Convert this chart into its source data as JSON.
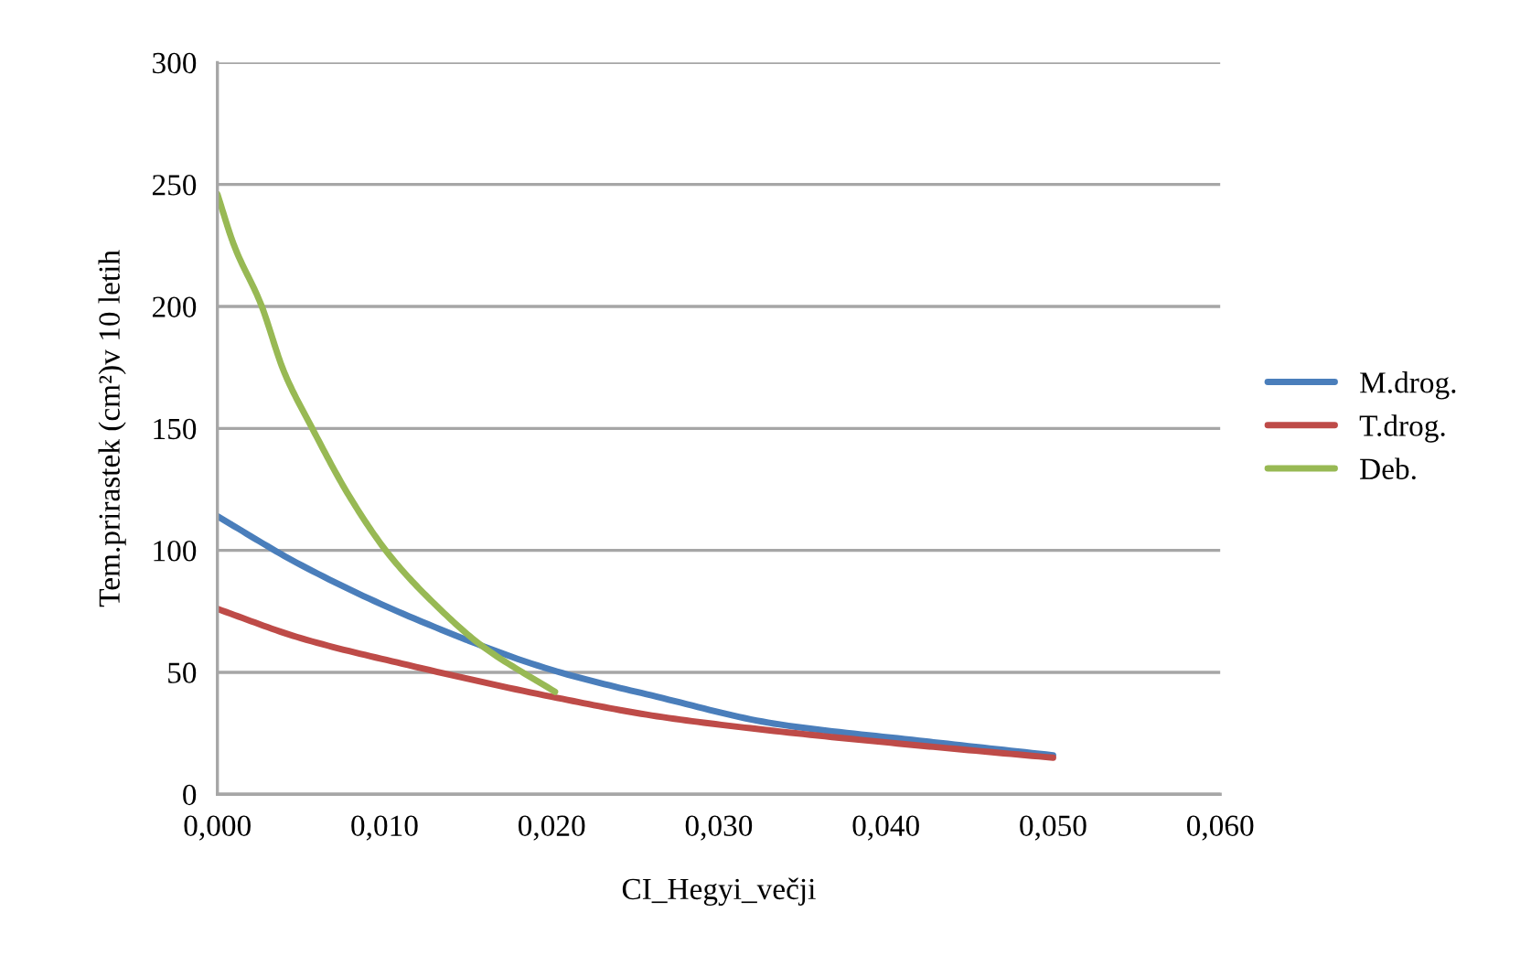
{
  "chart_data": {
    "type": "line",
    "xlabel": "CI_Hegyi_večji",
    "ylabel": "Tem.prirastek (cm²)v 10 letih",
    "xlim": [
      0,
      0.06
    ],
    "ylim": [
      0,
      300
    ],
    "xticks": [
      {
        "value": 0,
        "label": "0,000"
      },
      {
        "value": 0.01,
        "label": "0,010"
      },
      {
        "value": 0.02,
        "label": "0,020"
      },
      {
        "value": 0.03,
        "label": "0,030"
      },
      {
        "value": 0.04,
        "label": "0,040"
      },
      {
        "value": 0.05,
        "label": "0,050"
      },
      {
        "value": 0.06,
        "label": "0,060"
      }
    ],
    "yticks": [
      0,
      50,
      100,
      150,
      200,
      250,
      300
    ],
    "grid": "y",
    "legend": "right",
    "marker": "none",
    "line_style": "solid",
    "series": [
      {
        "name": "M.drog.",
        "color": "#4a7ebb",
        "x": [
          0,
          0.005,
          0.0118,
          0.02,
          0.0263,
          0.0333,
          0.042,
          0.05
        ],
        "values": [
          114,
          94,
          72,
          51,
          40,
          29,
          22,
          16
        ]
      },
      {
        "name": "T.drog.",
        "color": "#be4b48",
        "x": [
          0,
          0.005,
          0.0114,
          0.02,
          0.0263,
          0.0333,
          0.042,
          0.05
        ],
        "values": [
          76,
          64,
          53,
          40,
          32,
          26,
          20,
          15
        ]
      },
      {
        "name": "Deb.",
        "color": "#98b954",
        "x": [
          0,
          0.001,
          0.0026,
          0.004,
          0.0056,
          0.008,
          0.0103,
          0.013,
          0.0158,
          0.0202
        ],
        "values": [
          246,
          225,
          201,
          173,
          151,
          121,
          98,
          78,
          61,
          42
        ]
      }
    ]
  }
}
